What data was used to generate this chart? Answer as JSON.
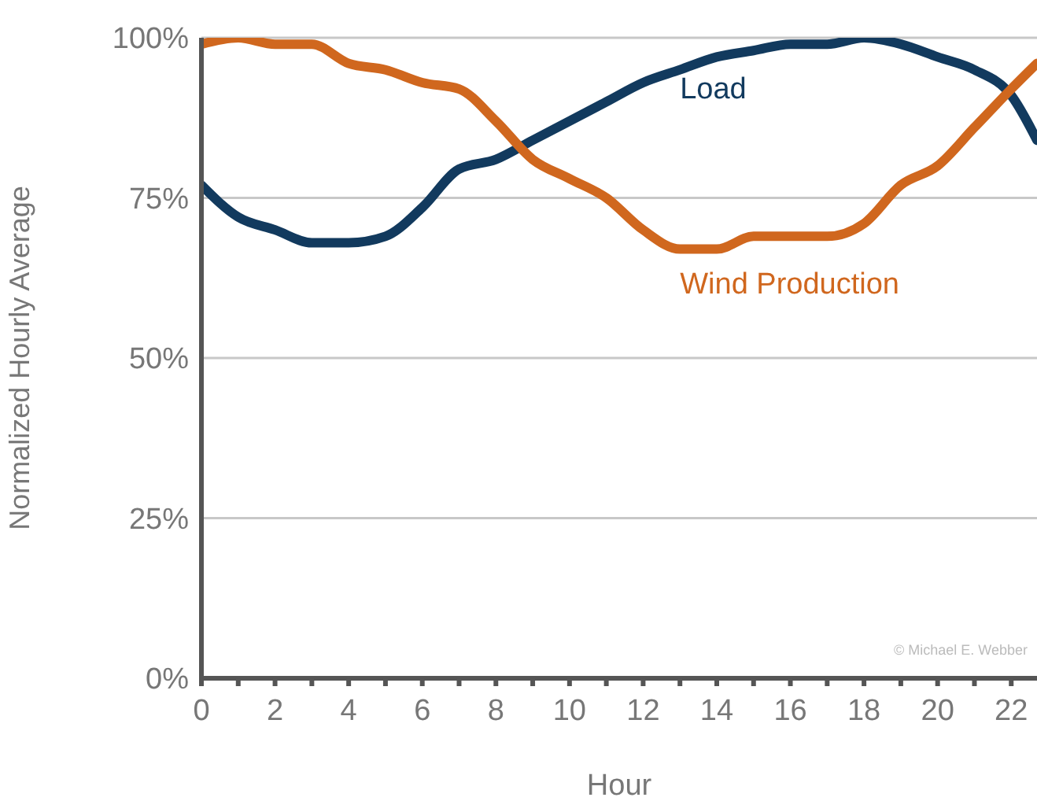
{
  "chart_data": {
    "type": "line",
    "xlabel": "Hour",
    "ylabel": "Normalized Hourly Average",
    "annotations": [
      "© Michael E. Webber"
    ],
    "x": [
      0,
      1,
      2,
      3,
      4,
      5,
      6,
      7,
      8,
      9,
      10,
      11,
      12,
      13,
      14,
      15,
      16,
      17,
      18,
      19,
      20,
      21,
      22,
      22.7
    ],
    "series": [
      {
        "name": "Load",
        "color": "#123a5e",
        "values": [
          77,
          72,
          70,
          68,
          68,
          69,
          73.5,
          79.5,
          81,
          84,
          87,
          90,
          93,
          95,
          97,
          98,
          99,
          99,
          100,
          99,
          97,
          95,
          91,
          84
        ]
      },
      {
        "name": "Wind Production",
        "color": "#d0671e",
        "values": [
          99,
          100,
          99,
          99,
          96,
          95,
          93,
          92,
          87,
          81,
          78,
          75,
          70,
          67,
          67,
          69,
          69,
          69,
          71,
          77,
          80,
          86,
          92,
          96
        ]
      }
    ],
    "xlim": [
      0,
      22.7
    ],
    "xticks": [
      0,
      {
        "value": 1,
        "label": null
      },
      2,
      {
        "value": 3,
        "label": null
      },
      4,
      {
        "value": 5,
        "label": null
      },
      6,
      {
        "value": 7,
        "label": null
      },
      8,
      {
        "value": 9,
        "label": null
      },
      10,
      {
        "value": 11,
        "label": null
      },
      12,
      {
        "value": 13,
        "label": null
      },
      14,
      {
        "value": 15,
        "label": null
      },
      16,
      {
        "value": 17,
        "label": null
      },
      18,
      {
        "value": 19,
        "label": null
      },
      20,
      {
        "value": 21,
        "label": null
      },
      22
    ],
    "ylim": [
      0,
      100
    ],
    "yticks": [
      {
        "value": 0,
        "label": "0%"
      },
      {
        "value": 25,
        "label": "25%"
      },
      {
        "value": 50,
        "label": "50%"
      },
      {
        "value": 75,
        "label": "75%"
      },
      {
        "value": 100,
        "label": "100%"
      }
    ],
    "grid": "y",
    "legend": false,
    "marker": "none",
    "line_style": "solid"
  }
}
